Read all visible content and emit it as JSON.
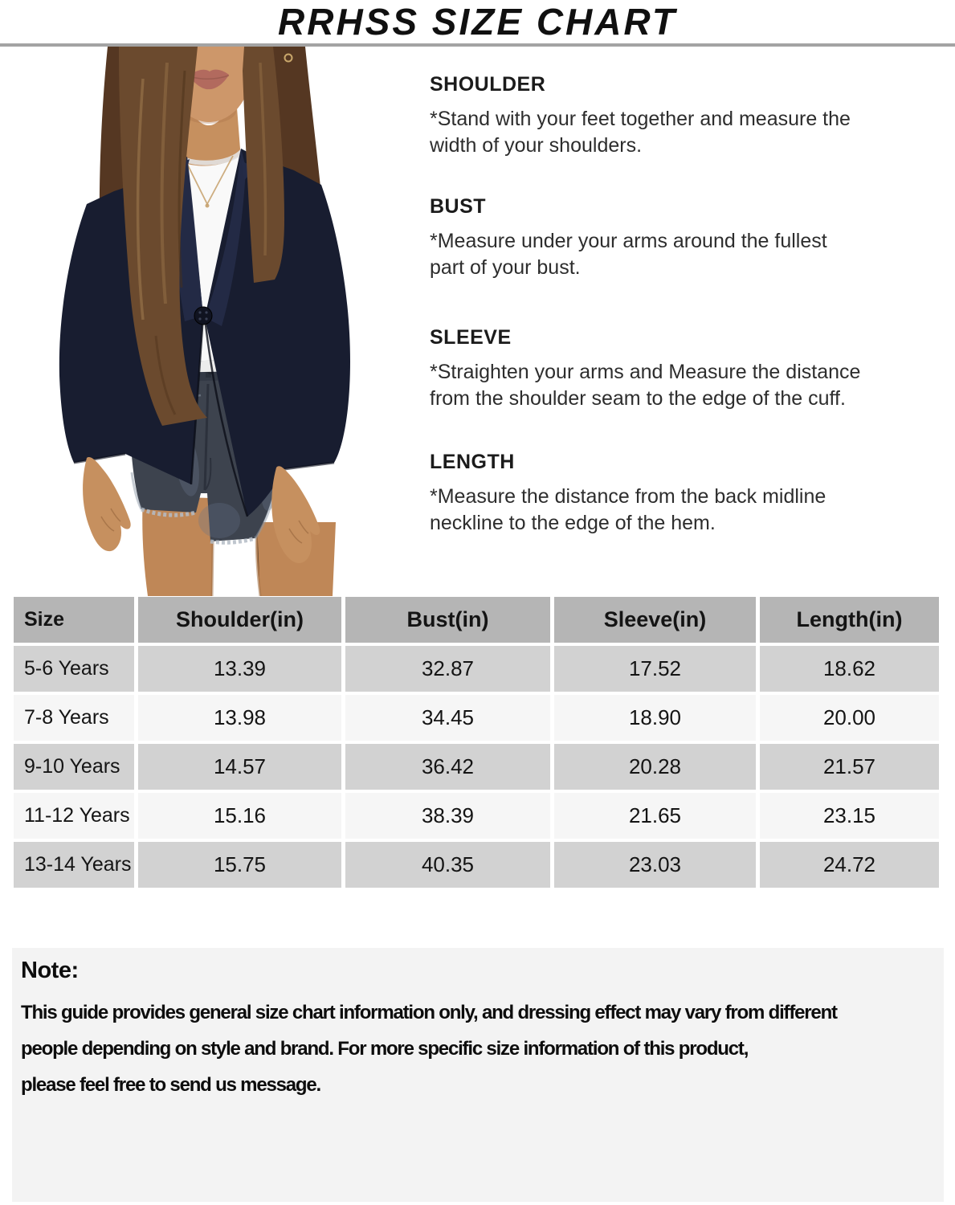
{
  "title": "RRHSS SIZE CHART",
  "photo": {
    "description": "Girl wearing a navy one-button blazer over a white t-shirt with dark washed denim shorts"
  },
  "measurements": {
    "sections": [
      {
        "heading": "SHOULDER",
        "text": "*Stand with your feet together and measure the\nwidth of your shoulders."
      },
      {
        "heading": "BUST",
        "text": "*Measure under your arms around the fullest\npart of your bust."
      },
      {
        "heading": "SLEEVE",
        "text": "*Straighten your arms and Measure the distance\nfrom the shoulder seam to the edge of the cuff."
      },
      {
        "heading": "LENGTH",
        "text": "*Measure the distance from the back midline\nneckline to the edge of the hem."
      }
    ]
  },
  "size_table": {
    "headers": [
      "Size",
      "Shoulder(in)",
      "Bust(in)",
      "Sleeve(in)",
      "Length(in)"
    ],
    "rows": [
      [
        "5-6 Years",
        "13.39",
        "32.87",
        "17.52",
        "18.62"
      ],
      [
        "7-8 Years",
        "13.98",
        "34.45",
        "18.90",
        "20.00"
      ],
      [
        "9-10 Years",
        "14.57",
        "36.42",
        "20.28",
        "21.57"
      ],
      [
        "11-12 Years",
        "15.16",
        "38.39",
        "21.65",
        "23.15"
      ],
      [
        "13-14 Years",
        "15.75",
        "40.35",
        "23.03",
        "24.72"
      ]
    ]
  },
  "note": {
    "heading": "Note:",
    "text": "This guide provides general size chart information only, and dressing effect may vary from different\npeople depending on style and brand. For more specific size information of this product,\nplease feel free to send us message."
  },
  "colors": {
    "table_header_bg": "#b5b5b5",
    "table_row_odd_bg": "#d2d2d2",
    "table_row_even_bg": "#f6f6f6",
    "note_bg": "#f3f3f3",
    "divider": "#a3a3a3",
    "blazer_navy": "#181d30"
  }
}
